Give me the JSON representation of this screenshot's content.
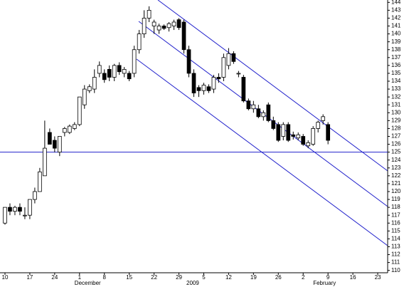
{
  "chart_data": {
    "type": "candlestick",
    "x": [
      0,
      1,
      2,
      3,
      4,
      5,
      6,
      7,
      8,
      9,
      10,
      11,
      12,
      13,
      14,
      15,
      16,
      17,
      18,
      19,
      20,
      21,
      22,
      23,
      24,
      25,
      26,
      27,
      28,
      29,
      30,
      31,
      32,
      33,
      34,
      35,
      36,
      37,
      38,
      39,
      40,
      41,
      42,
      43,
      44,
      45,
      46,
      47,
      48,
      49,
      50,
      51,
      52,
      53,
      54,
      55,
      56,
      57,
      58,
      59,
      60,
      61,
      62,
      63,
      64,
      65
    ],
    "open": [
      116,
      118,
      117.5,
      118,
      117,
      117,
      119,
      120,
      122,
      127.5,
      126.5,
      125,
      127.5,
      127.5,
      128,
      128.5,
      131,
      132.8,
      133,
      135,
      135,
      135.5,
      134.5,
      136,
      135,
      135,
      135,
      138,
      140,
      142,
      141,
      140.5,
      141,
      140.8,
      141,
      141.8,
      141.5,
      138,
      135,
      133.2,
      132.8,
      133.3,
      133,
      134.5,
      134.5,
      136,
      137.5,
      135,
      134.5,
      131.5,
      130.5,
      130.5,
      129.5,
      131,
      129,
      128.5,
      127,
      128.5,
      127.2,
      126.8,
      127,
      125.8,
      126,
      128,
      129,
      128.5
    ],
    "high": [
      118,
      118.5,
      118.2,
      118.5,
      118,
      119,
      120.5,
      123,
      129,
      128,
      127,
      127,
      128.2,
      128.5,
      128.8,
      132,
      133.5,
      133.6,
      135.5,
      136.5,
      135.5,
      136,
      136.2,
      136.4,
      135.8,
      135.3,
      138.5,
      140.5,
      143,
      143.5,
      141.8,
      141.3,
      141.2,
      141.5,
      141.8,
      142,
      141.8,
      138.5,
      135.5,
      133.5,
      133.8,
      133.6,
      134.8,
      135,
      137.5,
      138.2,
      137.8,
      135.3,
      134.8,
      131.8,
      131.5,
      131,
      130.3,
      131.3,
      129.5,
      128.8,
      128.8,
      128.8,
      127.6,
      127.5,
      127.3,
      126.5,
      128.3,
      129,
      129.8,
      128.8
    ],
    "low": [
      115.8,
      117,
      117,
      117,
      116.5,
      116.5,
      118.5,
      120,
      122,
      126,
      125,
      124.5,
      127,
      127.3,
      127.8,
      128.3,
      130.5,
      132.5,
      132.5,
      134.5,
      133.8,
      134,
      134,
      134.8,
      134.5,
      134,
      134.5,
      137.5,
      139.5,
      141.5,
      140,
      140,
      140.5,
      140.3,
      140.5,
      140.5,
      137.5,
      134.5,
      132,
      132,
      132.3,
      132.5,
      132.5,
      133.8,
      134,
      135.5,
      136.2,
      134.5,
      131.3,
      130.3,
      130,
      129.3,
      129,
      128.8,
      127.8,
      126.3,
      126.5,
      126.3,
      126.6,
      126.5,
      125.8,
      125.5,
      125.8,
      127.5,
      128.5,
      126
    ],
    "close": [
      118,
      117.5,
      118,
      117.5,
      117,
      119,
      120,
      122.5,
      125.5,
      126,
      125.5,
      127,
      128,
      128.3,
      128.5,
      132,
      133,
      133.3,
      134.5,
      136,
      134.2,
      134.5,
      136,
      135.2,
      135.5,
      134.3,
      138,
      140,
      142,
      143,
      141.5,
      141,
      140.7,
      141.3,
      141.5,
      140.8,
      138,
      135,
      132.5,
      132.8,
      133.5,
      132.8,
      134.5,
      134.3,
      137,
      137.5,
      136.5,
      135,
      131.5,
      130.5,
      131,
      129.5,
      130,
      129,
      128,
      126.5,
      128.5,
      126.5,
      127,
      127.2,
      126,
      126.2,
      128,
      128.8,
      129.5,
      126.5
    ],
    "xlim": [
      -1,
      77
    ],
    "xticks": [
      {
        "value": 0,
        "label": "10"
      },
      {
        "value": 5,
        "label": "17"
      },
      {
        "value": 10,
        "label": "24"
      },
      {
        "value": 15,
        "label": "1"
      },
      {
        "value": 20,
        "label": "8"
      },
      {
        "value": 25,
        "label": "15"
      },
      {
        "value": 30,
        "label": "22"
      },
      {
        "value": 35,
        "label": "29"
      },
      {
        "value": 40,
        "label": "5"
      },
      {
        "value": 45,
        "label": "12"
      },
      {
        "value": 50,
        "label": "19"
      },
      {
        "value": 55,
        "label": "26"
      },
      {
        "value": 60,
        "label": "2"
      },
      {
        "value": 65,
        "label": "9"
      },
      {
        "value": 70,
        "label": "16"
      },
      {
        "value": 75,
        "label": "23"
      }
    ],
    "month_labels": [
      {
        "value": 14,
        "label": "December"
      },
      {
        "value": 36.5,
        "label": "2009"
      },
      {
        "value": 62,
        "label": "February"
      }
    ],
    "ylim": [
      109.7,
      144.3
    ],
    "yticks": [
      110,
      111,
      112,
      113,
      114,
      115,
      116,
      117,
      118,
      119,
      120,
      121,
      122,
      123,
      124,
      125,
      126,
      127,
      128,
      129,
      130,
      131,
      132,
      133,
      134,
      135,
      136,
      137,
      138,
      139,
      140,
      141,
      142,
      143,
      144
    ],
    "hline": 125,
    "hline_color": "#2222cc",
    "up_color": "#ffffff",
    "down_color": "#000000"
  }
}
